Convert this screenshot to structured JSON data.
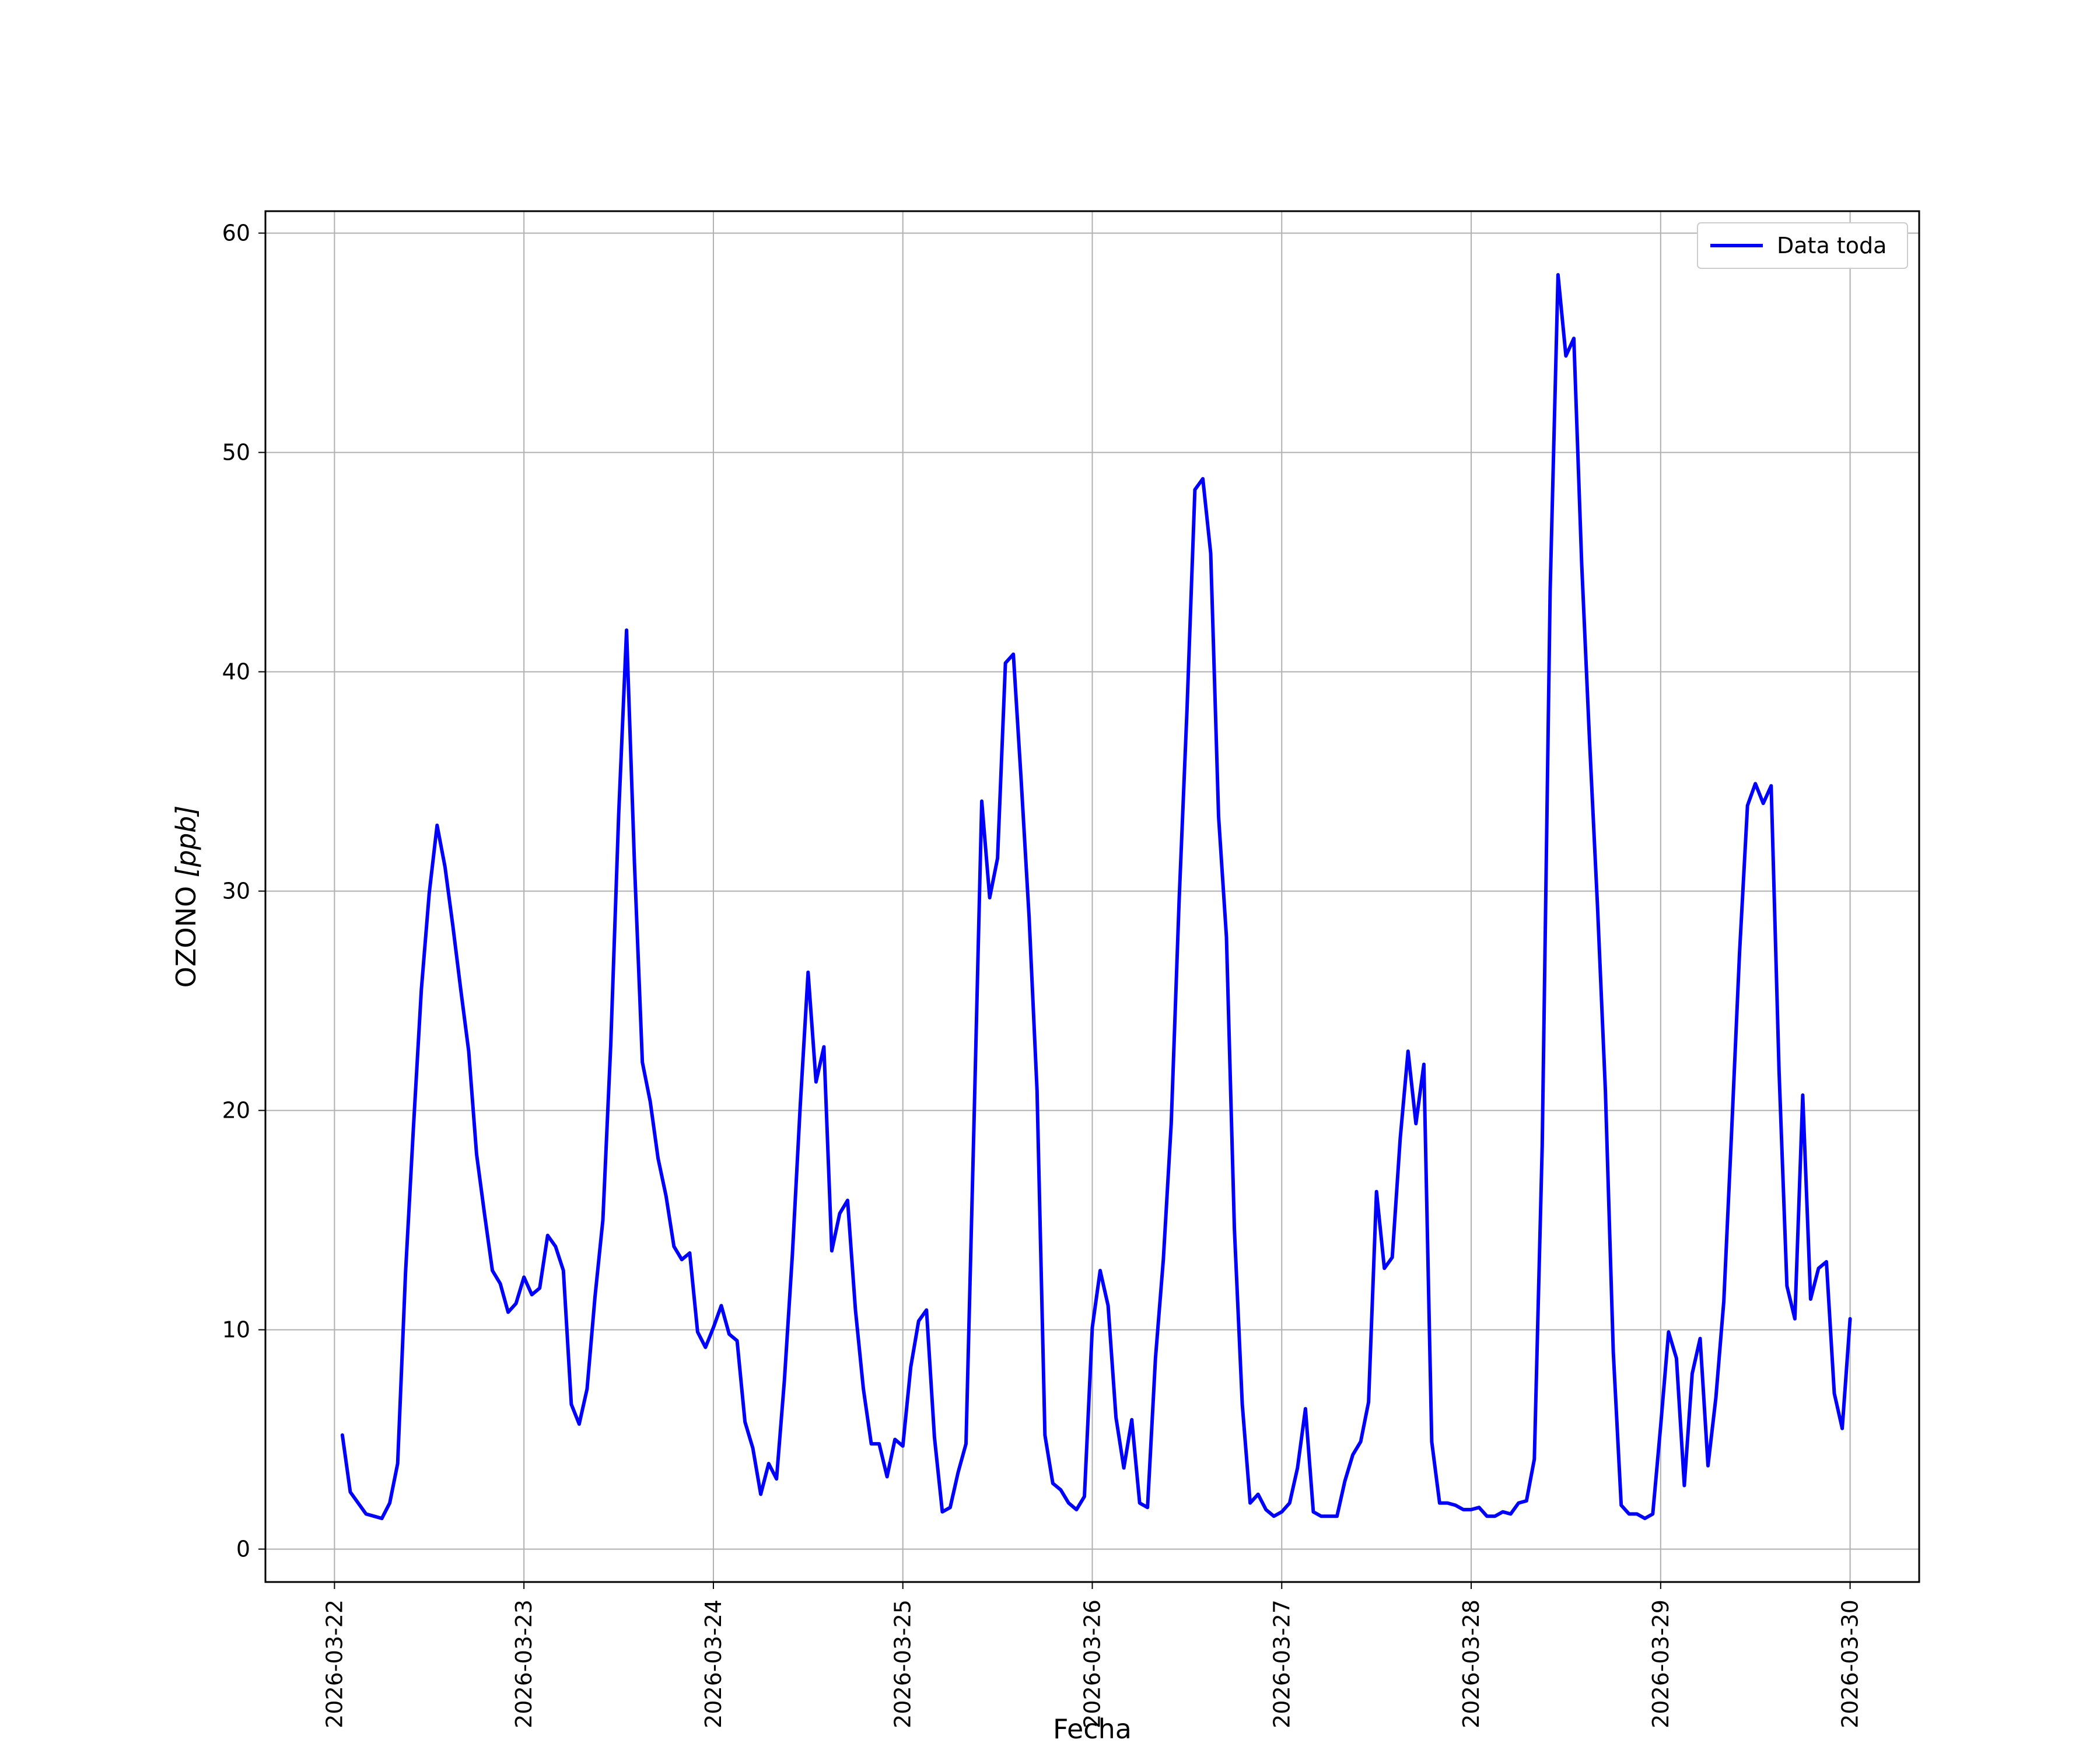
{
  "chart_data": {
    "type": "line",
    "xlabel": "Fecha",
    "ylabel": "OZONO [ppb]",
    "ylabel_parts": {
      "text": "OZONO ",
      "unit": "[ppb]"
    },
    "xlim": [
      "2026-03-21 15:15",
      "2026-03-30 08:45"
    ],
    "ylim": [
      -1.5,
      61
    ],
    "yticks": [
      0,
      10,
      20,
      30,
      40,
      50,
      60
    ],
    "xticks": [
      "2026-03-22",
      "2026-03-23",
      "2026-03-24",
      "2026-03-25",
      "2026-03-26",
      "2026-03-27",
      "2026-03-28",
      "2026-03-29",
      "2026-03-30"
    ],
    "grid": true,
    "legend": {
      "position": "top-right",
      "entries": [
        {
          "label": "Data toda",
          "color": "#0000ff"
        }
      ]
    },
    "series": [
      {
        "name": "Data toda",
        "color": "#0000ff",
        "x": [
          "2026-03-22 01:00",
          "2026-03-22 02:00",
          "2026-03-22 03:00",
          "2026-03-22 04:00",
          "2026-03-22 05:00",
          "2026-03-22 06:00",
          "2026-03-22 07:00",
          "2026-03-22 08:00",
          "2026-03-22 09:00",
          "2026-03-22 10:00",
          "2026-03-22 11:00",
          "2026-03-22 12:00",
          "2026-03-22 13:00",
          "2026-03-22 14:00",
          "2026-03-22 15:00",
          "2026-03-22 16:00",
          "2026-03-22 17:00",
          "2026-03-22 18:00",
          "2026-03-22 19:00",
          "2026-03-22 20:00",
          "2026-03-22 21:00",
          "2026-03-22 22:00",
          "2026-03-22 23:00",
          "2026-03-23 00:00",
          "2026-03-23 01:00",
          "2026-03-23 02:00",
          "2026-03-23 03:00",
          "2026-03-23 04:00",
          "2026-03-23 05:00",
          "2026-03-23 06:00",
          "2026-03-23 07:00",
          "2026-03-23 08:00",
          "2026-03-23 09:00",
          "2026-03-23 10:00",
          "2026-03-23 11:00",
          "2026-03-23 12:00",
          "2026-03-23 13:00",
          "2026-03-23 14:00",
          "2026-03-23 15:00",
          "2026-03-23 16:00",
          "2026-03-23 17:00",
          "2026-03-23 18:00",
          "2026-03-23 19:00",
          "2026-03-23 20:00",
          "2026-03-23 21:00",
          "2026-03-23 22:00",
          "2026-03-23 23:00",
          "2026-03-24 00:00",
          "2026-03-24 01:00",
          "2026-03-24 02:00",
          "2026-03-24 03:00",
          "2026-03-24 04:00",
          "2026-03-24 05:00",
          "2026-03-24 06:00",
          "2026-03-24 07:00",
          "2026-03-24 08:00",
          "2026-03-24 09:00",
          "2026-03-24 10:00",
          "2026-03-24 11:00",
          "2026-03-24 12:00",
          "2026-03-24 13:00",
          "2026-03-24 14:00",
          "2026-03-24 15:00",
          "2026-03-24 16:00",
          "2026-03-24 17:00",
          "2026-03-24 18:00",
          "2026-03-24 19:00",
          "2026-03-24 20:00",
          "2026-03-24 21:00",
          "2026-03-24 22:00",
          "2026-03-24 23:00",
          "2026-03-25 00:00",
          "2026-03-25 01:00",
          "2026-03-25 02:00",
          "2026-03-25 03:00",
          "2026-03-25 04:00",
          "2026-03-25 05:00",
          "2026-03-25 06:00",
          "2026-03-25 07:00",
          "2026-03-25 08:00",
          "2026-03-25 09:00",
          "2026-03-25 10:00",
          "2026-03-25 11:00",
          "2026-03-25 12:00",
          "2026-03-25 13:00",
          "2026-03-25 14:00",
          "2026-03-25 15:00",
          "2026-03-25 16:00",
          "2026-03-25 17:00",
          "2026-03-25 18:00",
          "2026-03-25 19:00",
          "2026-03-25 20:00",
          "2026-03-25 21:00",
          "2026-03-25 22:00",
          "2026-03-25 23:00",
          "2026-03-26 00:00",
          "2026-03-26 01:00",
          "2026-03-26 02:00",
          "2026-03-26 03:00",
          "2026-03-26 04:00",
          "2026-03-26 05:00",
          "2026-03-26 06:00",
          "2026-03-26 07:00",
          "2026-03-26 08:00",
          "2026-03-26 09:00",
          "2026-03-26 10:00",
          "2026-03-26 11:00",
          "2026-03-26 12:00",
          "2026-03-26 13:00",
          "2026-03-26 14:00",
          "2026-03-26 15:00",
          "2026-03-26 16:00",
          "2026-03-26 17:00",
          "2026-03-26 18:00",
          "2026-03-26 19:00",
          "2026-03-26 20:00",
          "2026-03-26 21:00",
          "2026-03-26 22:00",
          "2026-03-26 23:00",
          "2026-03-27 00:00",
          "2026-03-27 01:00",
          "2026-03-27 02:00",
          "2026-03-27 03:00",
          "2026-03-27 04:00",
          "2026-03-27 05:00",
          "2026-03-27 06:00",
          "2026-03-27 07:00",
          "2026-03-27 08:00",
          "2026-03-27 09:00",
          "2026-03-27 10:00",
          "2026-03-27 11:00",
          "2026-03-27 12:00",
          "2026-03-27 13:00",
          "2026-03-27 14:00",
          "2026-03-27 15:00",
          "2026-03-27 16:00",
          "2026-03-27 17:00",
          "2026-03-27 18:00",
          "2026-03-27 19:00",
          "2026-03-27 20:00",
          "2026-03-27 21:00",
          "2026-03-27 22:00",
          "2026-03-27 23:00",
          "2026-03-28 00:00",
          "2026-03-28 01:00",
          "2026-03-28 02:00",
          "2026-03-28 03:00",
          "2026-03-28 04:00",
          "2026-03-28 05:00",
          "2026-03-28 06:00",
          "2026-03-28 07:00",
          "2026-03-28 08:00",
          "2026-03-28 09:00",
          "2026-03-28 10:00",
          "2026-03-28 11:00",
          "2026-03-28 12:00",
          "2026-03-28 13:00",
          "2026-03-28 14:00",
          "2026-03-28 15:00",
          "2026-03-28 16:00",
          "2026-03-28 17:00",
          "2026-03-28 18:00",
          "2026-03-28 19:00",
          "2026-03-28 20:00",
          "2026-03-28 21:00",
          "2026-03-28 22:00",
          "2026-03-28 23:00",
          "2026-03-29 00:00",
          "2026-03-29 01:00",
          "2026-03-29 02:00",
          "2026-03-29 03:00",
          "2026-03-29 04:00",
          "2026-03-29 05:00",
          "2026-03-29 06:00",
          "2026-03-29 07:00",
          "2026-03-29 08:00",
          "2026-03-29 09:00",
          "2026-03-29 10:00",
          "2026-03-29 11:00",
          "2026-03-29 12:00",
          "2026-03-29 13:00",
          "2026-03-29 14:00",
          "2026-03-29 15:00",
          "2026-03-29 16:00",
          "2026-03-29 17:00",
          "2026-03-29 18:00",
          "2026-03-29 19:00",
          "2026-03-29 20:00",
          "2026-03-29 21:00",
          "2026-03-29 22:00",
          "2026-03-29 23:00",
          "2026-03-30 00:00"
        ],
        "values": [
          5.2,
          2.6,
          2.1,
          1.6,
          1.5,
          1.4,
          2.1,
          3.9,
          12.6,
          19.2,
          25.5,
          29.9,
          33,
          31.1,
          28.4,
          25.5,
          22.7,
          18,
          15.3,
          12.7,
          12.1,
          10.8,
          11.2,
          12.4,
          11.6,
          11.9,
          14.3,
          13.8,
          12.7,
          6.6,
          5.7,
          7.3,
          11.5,
          15,
          23,
          33.5,
          41.9,
          31.3,
          22.2,
          20.4,
          17.8,
          16.1,
          13.8,
          13.2,
          13.5,
          9.9,
          9.2,
          10.1,
          11.1,
          9.8,
          9.5,
          5.8,
          4.6,
          2.5,
          3.9,
          3.2,
          7.7,
          13.4,
          20.2,
          26.3,
          21.3,
          22.9,
          13.6,
          15.3,
          15.9,
          10.9,
          7.3,
          4.8,
          4.8,
          3.3,
          5,
          4.7,
          8.3,
          10.4,
          10.9,
          5.1,
          1.7,
          1.9,
          3.5,
          4.8,
          19.2,
          34.1,
          29.7,
          31.5,
          40.4,
          40.8,
          35,
          28.8,
          20.9,
          5.2,
          3,
          2.7,
          2.1,
          1.8,
          2.4,
          10.1,
          12.7,
          11.1,
          6,
          3.7,
          5.9,
          2.1,
          1.9,
          8.7,
          13.2,
          19.4,
          29.6,
          38.3,
          48.3,
          48.8,
          45.4,
          33.4,
          27.9,
          14.6,
          6.6,
          2.1,
          2.5,
          1.8,
          1.5,
          1.7,
          2.1,
          3.7,
          6.4,
          1.7,
          1.5,
          1.5,
          1.5,
          3.1,
          4.3,
          4.9,
          6.7,
          16.3,
          12.8,
          13.3,
          18.7,
          22.7,
          19.4,
          22.1,
          4.9,
          2.1,
          2.1,
          2,
          1.8,
          1.8,
          1.9,
          1.5,
          1.5,
          1.7,
          1.6,
          2.1,
          2.2,
          4.1,
          18.4,
          43.7,
          58.1,
          54.4,
          55.2,
          44.9,
          36.8,
          29.3,
          20.9,
          9,
          2,
          1.6,
          1.6,
          1.4,
          1.6,
          5.6,
          9.9,
          8.7,
          2.9,
          8,
          9.6,
          3.8,
          6.9,
          11.3,
          19.1,
          27.2,
          33.9,
          34.9,
          34,
          34.8,
          21.8,
          12,
          10.5,
          20.7,
          11.4,
          12.8,
          13.1,
          7.1,
          5.5,
          10.5
        ]
      }
    ]
  }
}
